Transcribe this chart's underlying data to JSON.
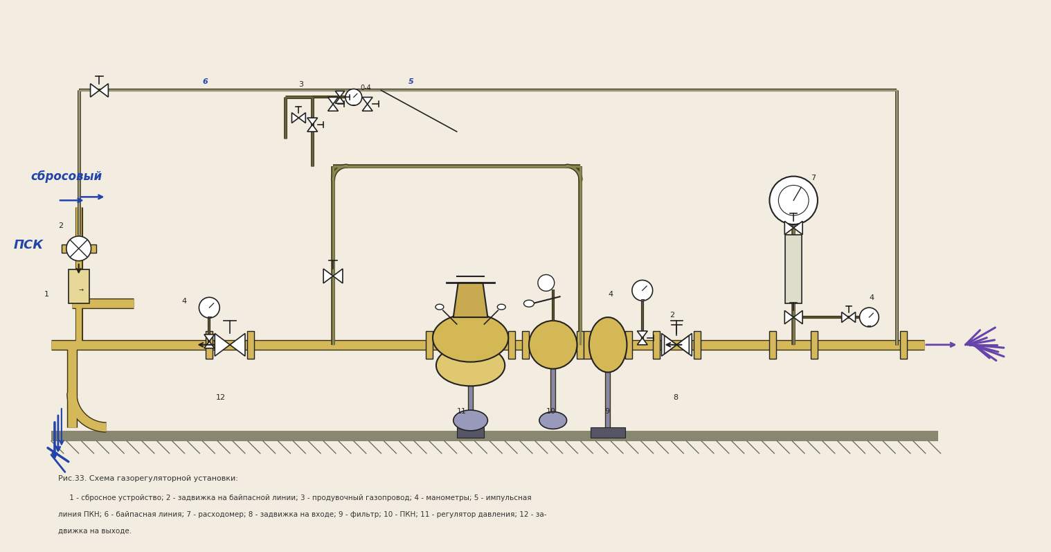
{
  "title": "Рис.33. Схема газорегуляторной установки:",
  "caption_line1": "     1 - сбросное устройство; 2 - задвижка на байпасной линии; 3 - продувочный газопровод; 4 - манометры; 5 - импульсная",
  "caption_line2": "линия ПКН; 6 - байпасная линия; 7 - расходомер; 8 - задвижка на входе; 9 - фильтр; 10 - ПКН; 11 - регулятор давления; 12 - за-",
  "caption_line3": "движка на выходе.",
  "handwritten_top": "сбросовый",
  "handwritten_left": "ПСК",
  "bg_color": "#f2ede0",
  "pipe_color": "#d4b85a",
  "pipe_color_light": "#e8d898",
  "pipe_outline_color": "#3a3010",
  "line_color": "#222222",
  "blue_color": "#2244aa",
  "purple_color": "#6644aa",
  "caption_color": "#333333"
}
